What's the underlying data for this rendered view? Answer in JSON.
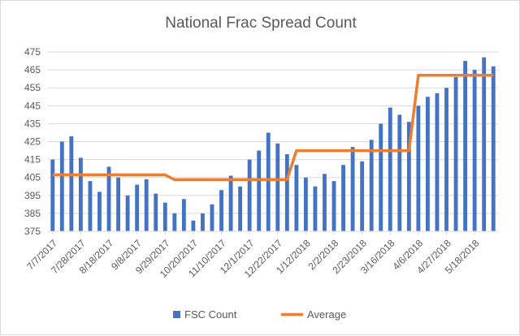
{
  "chart_data": {
    "type": "bar",
    "title": "National Frac Spread Count",
    "xlabel": "",
    "ylabel": "",
    "ylim": [
      375,
      480
    ],
    "y_ticks": [
      375,
      385,
      395,
      405,
      415,
      425,
      435,
      445,
      455,
      465,
      475
    ],
    "x_tick_labels": [
      "7/7/2017",
      "7/28/2017",
      "8/18/2017",
      "9/8/2017",
      "9/29/2017",
      "10/20/2017",
      "11/10/2017",
      "12/1/2017",
      "12/22/2017",
      "1/12/2018",
      "2/2/2018",
      "2/23/2018",
      "3/16/2018",
      "4/6/2018",
      "4/27/2018",
      "5/18/2018"
    ],
    "categories": [
      "7/7/2017",
      "7/14/2017",
      "7/21/2017",
      "7/28/2017",
      "8/4/2017",
      "8/11/2017",
      "8/18/2017",
      "8/25/2017",
      "9/1/2017",
      "9/8/2017",
      "9/15/2017",
      "9/22/2017",
      "9/29/2017",
      "10/6/2017",
      "10/13/2017",
      "10/20/2017",
      "10/27/2017",
      "11/3/2017",
      "11/10/2017",
      "11/17/2017",
      "11/24/2017",
      "12/1/2017",
      "12/8/2017",
      "12/15/2017",
      "12/22/2017",
      "12/29/2017",
      "1/5/2018",
      "1/12/2018",
      "1/19/2018",
      "1/26/2018",
      "2/2/2018",
      "2/9/2018",
      "2/16/2018",
      "2/23/2018",
      "3/2/2018",
      "3/9/2018",
      "3/16/2018",
      "3/23/2018",
      "3/30/2018",
      "4/6/2018",
      "4/13/2018",
      "4/20/2018",
      "4/27/2018",
      "5/4/2018",
      "5/11/2018",
      "5/18/2018",
      "5/25/2018",
      "6/1/2018"
    ],
    "series": [
      {
        "name": "FSC Count",
        "type": "bar",
        "color": "#4472c4",
        "values": [
          415,
          425,
          428,
          416,
          403,
          397,
          411,
          405,
          395,
          401,
          404,
          396,
          391,
          385,
          393,
          381,
          385,
          390,
          398,
          406,
          400,
          415,
          420,
          430,
          424,
          418,
          412,
          405,
          400,
          407,
          403,
          412,
          422,
          414,
          426,
          435,
          444,
          440,
          436,
          445,
          450,
          452,
          455,
          461,
          470,
          465,
          472,
          467
        ]
      },
      {
        "name": "Average",
        "type": "line",
        "color": "#ed7d31",
        "values": [
          406.5,
          406.5,
          406.5,
          406.5,
          406.5,
          406.5,
          406.5,
          406.5,
          406.5,
          406.5,
          406.5,
          406.5,
          406.5,
          403.8,
          403.8,
          403.8,
          403.8,
          403.8,
          403.8,
          403.8,
          403.8,
          403.8,
          403.8,
          403.8,
          403.8,
          403.8,
          420,
          420,
          420,
          420,
          420,
          420,
          420,
          420,
          420,
          420,
          420,
          420,
          420,
          462,
          462,
          462,
          462,
          462,
          462,
          462,
          462,
          462
        ]
      }
    ],
    "grid": true,
    "legend_position": "bottom"
  }
}
